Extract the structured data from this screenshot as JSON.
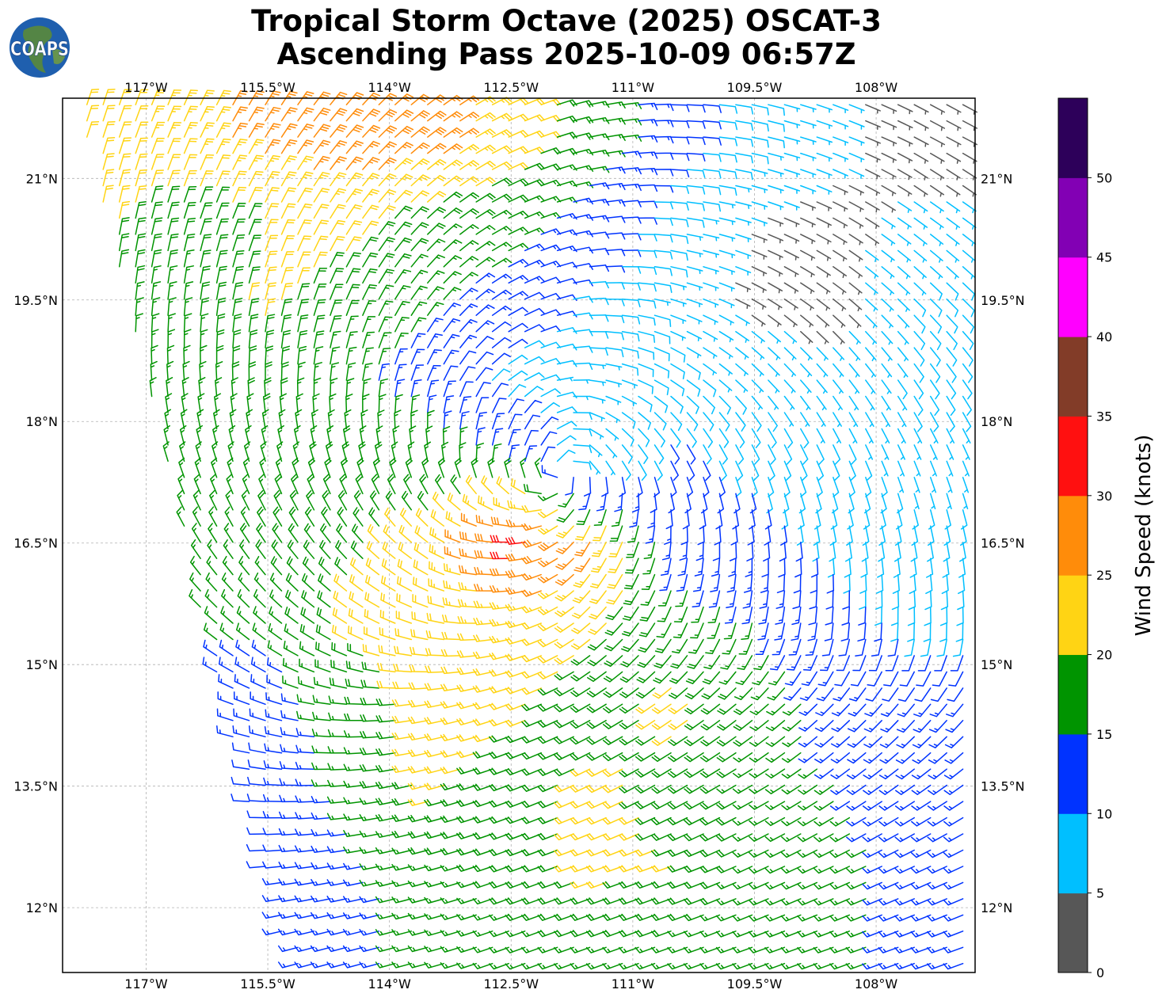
{
  "title": {
    "line1": "Tropical Storm Octave (2025) OSCAT-3",
    "line2": "Ascending Pass 2025-10-09 06:57Z"
  },
  "logo": {
    "text": "COAPS"
  },
  "chart_data": {
    "type": "wind-barb-map",
    "projection": "PlateCarree",
    "xlim": [
      -118.03,
      -106.78
    ],
    "ylim": [
      11.2,
      21.99
    ],
    "grid": true,
    "lon_ticks": [
      -117,
      -115.5,
      -114,
      -112.5,
      -111,
      -109.5,
      -108
    ],
    "lon_tick_labels": [
      "117°W",
      "115.5°W",
      "114°W",
      "112.5°W",
      "111°W",
      "109.5°W",
      "108°W"
    ],
    "lat_ticks": [
      21,
      19.5,
      18,
      16.5,
      15,
      13.5,
      12
    ],
    "lat_tick_labels": [
      "21°N",
      "19.5°N",
      "18°N",
      "16.5°N",
      "15°N",
      "13.5°N",
      "12°N"
    ],
    "swath_left_edge": [
      [
        -117.92,
        21.99
      ],
      [
        -115.28,
        11.2
      ]
    ],
    "wind_grid": {
      "lats": [
        21.5,
        20.5,
        19.5,
        18.5,
        17.5,
        16.5,
        15.5,
        14.5,
        13.5,
        12.5,
        11.5
      ],
      "lons": [
        -117.5,
        -116.5,
        -115.5,
        -114.5,
        -113.5,
        -112.5,
        -111.5,
        -110.5,
        -109.5,
        -108.5,
        -107.5
      ],
      "speed_knots": [
        [
          22,
          23,
          27,
          28,
          28,
          22,
          17,
          12,
          8,
          6,
          3
        ],
        [
          21,
          18,
          20,
          22,
          18,
          17,
          13,
          8,
          5,
          4,
          6
        ],
        [
          null,
          17,
          21,
          18,
          16,
          13,
          9,
          7,
          4,
          4,
          8
        ],
        [
          null,
          17,
          18,
          16,
          13,
          8,
          7,
          8,
          7,
          6,
          8
        ],
        [
          null,
          17,
          17,
          18,
          17,
          15,
          6,
          11,
          9,
          8,
          7
        ],
        [
          null,
          16,
          18,
          19,
          22,
          32,
          26,
          13,
          12,
          9,
          8
        ],
        [
          null,
          null,
          16,
          21,
          22,
          23,
          21,
          17,
          15,
          12,
          9
        ],
        [
          null,
          null,
          13,
          17,
          22,
          21,
          18,
          21,
          18,
          13,
          13
        ],
        [
          null,
          null,
          12,
          16,
          21,
          18,
          21,
          19,
          17,
          15,
          13
        ],
        [
          null,
          null,
          12,
          14,
          17,
          18,
          21,
          20,
          17,
          16,
          14
        ],
        [
          null,
          null,
          null,
          14,
          16,
          17,
          17,
          17,
          16,
          16,
          14
        ]
      ],
      "direction_from_deg": [
        [
          18,
          24,
          32,
          41,
          53,
          66,
          79,
          92,
          103,
          111,
          118
        ],
        [
          11,
          17,
          24,
          34,
          48,
          65,
          82,
          98,
          110,
          119,
          126
        ],
        [
          null,
          7,
          14,
          24,
          39,
          62,
          88,
          108,
          121,
          129,
          135
        ],
        [
          null,
          356,
          0,
          8,
          23,
          56,
          100,
          125,
          136,
          142,
          146
        ],
        [
          null,
          343,
          343,
          345,
          349,
          14,
          144,
          153,
          156,
          157,
          158
        ],
        [
          null,
          329,
          326,
          321,
          308,
          270,
          209,
          185,
          176,
          172,
          170
        ],
        [
          null,
          null,
          311,
          302,
          286,
          259,
          229,
          207,
          194,
          186,
          181
        ],
        [
          null,
          null,
          290,
          275,
          260,
          250,
          240,
          235,
          230,
          225,
          220
        ],
        [
          null,
          null,
          275,
          265,
          255,
          250,
          245,
          240,
          240,
          235,
          235
        ],
        [
          null,
          null,
          265,
          260,
          255,
          250,
          250,
          250,
          245,
          245,
          245
        ],
        [
          null,
          null,
          null,
          255,
          255,
          250,
          250,
          250,
          250,
          250,
          250
        ]
      ]
    },
    "colorbar": {
      "label": "Wind Speed (knots)",
      "bounds": [
        0,
        5,
        10,
        15,
        20,
        25,
        30,
        35,
        40,
        45,
        50,
        55
      ],
      "tick_labels": [
        "0",
        "5",
        "10",
        "15",
        "20",
        "25",
        "30",
        "35",
        "40",
        "45",
        "50"
      ],
      "colors": [
        "#575757",
        "#00bfff",
        "#0033ff",
        "#009400",
        "#ffd414",
        "#ff8c0a",
        "#ff1010",
        "#823c28",
        "#ff00ff",
        "#8200b4",
        "#2d005a"
      ]
    }
  }
}
